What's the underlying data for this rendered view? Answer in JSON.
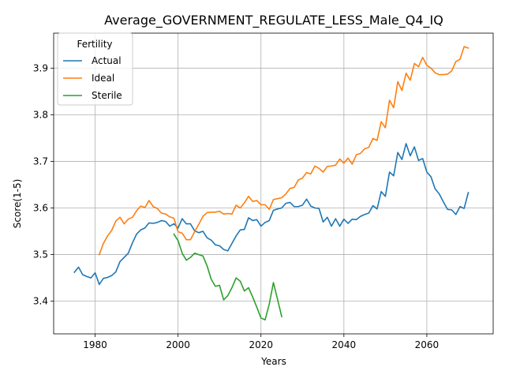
{
  "chart_data": {
    "type": "line",
    "title": "Average_GOVERNMENT_REGULATE_LESS_Male_Q4_IQ",
    "xlabel": "Years",
    "ylabel": "Score(1-5)",
    "xlim": [
      1970,
      2076
    ],
    "ylim": [
      3.33,
      3.975
    ],
    "x_ticks": [
      1980,
      2000,
      2020,
      2040,
      2060
    ],
    "y_ticks": [
      3.4,
      3.5,
      3.6,
      3.7,
      3.8,
      3.9
    ],
    "grid": true,
    "legend": {
      "title": "Fertility",
      "placement": "top-left"
    },
    "series": [
      {
        "name": "Actual",
        "color": "#1f77b4",
        "x": [
          1975,
          1976,
          1977,
          1978,
          1979,
          1980,
          1981,
          1982,
          1983,
          1984,
          1985,
          1986,
          1987,
          1988,
          1989,
          1990,
          1991,
          1992,
          1993,
          1994,
          1995,
          1996,
          1997,
          1998,
          1999,
          2000,
          2001,
          2002,
          2003,
          2004,
          2005,
          2006,
          2007,
          2008,
          2009,
          2010,
          2011,
          2012,
          2013,
          2014,
          2015,
          2016,
          2017,
          2018,
          2019,
          2020,
          2021,
          2022,
          2023,
          2024,
          2025,
          2026,
          2027,
          2028,
          2029,
          2030,
          2031,
          2032,
          2033,
          2034,
          2035,
          2036,
          2037,
          2038,
          2039,
          2040,
          2041,
          2042,
          2043,
          2044,
          2045,
          2046,
          2047,
          2048,
          2049,
          2050,
          2051,
          2052,
          2053,
          2054,
          2055,
          2056,
          2057,
          2058,
          2059,
          2060,
          2061,
          2062,
          2063,
          2064,
          2065,
          2066,
          2067,
          2068,
          2069,
          2070
        ],
        "values": [
          3.462,
          3.473,
          3.457,
          3.453,
          3.45,
          3.461,
          3.436,
          3.449,
          3.451,
          3.455,
          3.463,
          3.485,
          3.494,
          3.503,
          3.525,
          3.544,
          3.553,
          3.557,
          3.568,
          3.567,
          3.569,
          3.573,
          3.571,
          3.561,
          3.566,
          3.557,
          3.577,
          3.566,
          3.566,
          3.551,
          3.547,
          3.55,
          3.536,
          3.531,
          3.521,
          3.519,
          3.511,
          3.508,
          3.524,
          3.54,
          3.553,
          3.554,
          3.579,
          3.573,
          3.575,
          3.561,
          3.569,
          3.573,
          3.595,
          3.598,
          3.6,
          3.61,
          3.612,
          3.603,
          3.603,
          3.606,
          3.619,
          3.604,
          3.6,
          3.599,
          3.57,
          3.58,
          3.561,
          3.577,
          3.561,
          3.576,
          3.567,
          3.576,
          3.575,
          3.582,
          3.586,
          3.589,
          3.605,
          3.598,
          3.635,
          3.625,
          3.677,
          3.669,
          3.719,
          3.704,
          3.738,
          3.712,
          3.731,
          3.702,
          3.706,
          3.677,
          3.667,
          3.641,
          3.63,
          3.613,
          3.597,
          3.596,
          3.586,
          3.603,
          3.599,
          3.633
        ]
      },
      {
        "name": "Ideal",
        "color": "#ff7f0e",
        "x": [
          1981,
          1982,
          1983,
          1984,
          1985,
          1986,
          1987,
          1988,
          1989,
          1990,
          1991,
          1992,
          1993,
          1994,
          1995,
          1996,
          1997,
          1998,
          1999,
          2000,
          2001,
          2002,
          2003,
          2004,
          2005,
          2006,
          2007,
          2008,
          2009,
          2010,
          2011,
          2012,
          2013,
          2014,
          2015,
          2016,
          2017,
          2018,
          2019,
          2020,
          2021,
          2022,
          2023,
          2024,
          2025,
          2026,
          2027,
          2028,
          2029,
          2030,
          2031,
          2032,
          2033,
          2034,
          2035,
          2036,
          2037,
          2038,
          2039,
          2040,
          2041,
          2042,
          2043,
          2044,
          2045,
          2046,
          2047,
          2048,
          2049,
          2050,
          2051,
          2052,
          2053,
          2054,
          2055,
          2056,
          2057,
          2058,
          2059,
          2060,
          2061,
          2062,
          2063,
          2064,
          2065,
          2066,
          2067,
          2068,
          2069,
          2070
        ],
        "values": [
          3.5,
          3.524,
          3.54,
          3.552,
          3.572,
          3.58,
          3.566,
          3.576,
          3.58,
          3.594,
          3.604,
          3.601,
          3.616,
          3.603,
          3.599,
          3.589,
          3.587,
          3.581,
          3.578,
          3.549,
          3.546,
          3.532,
          3.532,
          3.549,
          3.565,
          3.582,
          3.59,
          3.591,
          3.591,
          3.593,
          3.587,
          3.588,
          3.587,
          3.606,
          3.6,
          3.611,
          3.625,
          3.614,
          3.616,
          3.607,
          3.607,
          3.597,
          3.618,
          3.62,
          3.622,
          3.63,
          3.642,
          3.644,
          3.66,
          3.664,
          3.676,
          3.673,
          3.69,
          3.685,
          3.677,
          3.689,
          3.69,
          3.692,
          3.705,
          3.696,
          3.707,
          3.694,
          3.714,
          3.717,
          3.727,
          3.73,
          3.749,
          3.745,
          3.785,
          3.772,
          3.831,
          3.815,
          3.871,
          3.852,
          3.889,
          3.874,
          3.91,
          3.903,
          3.923,
          3.906,
          3.9,
          3.89,
          3.886,
          3.886,
          3.887,
          3.894,
          3.914,
          3.919,
          3.946,
          3.943
        ]
      },
      {
        "name": "Sterile",
        "color": "#2ca02c",
        "x": [
          1999,
          2000,
          2001,
          2002,
          2003,
          2004,
          2005,
          2006,
          2007,
          2008,
          2009,
          2010,
          2011,
          2012,
          2013,
          2014,
          2015,
          2016,
          2017,
          2018,
          2019,
          2020,
          2021,
          2022,
          2023,
          2024,
          2025
        ],
        "values": [
          3.544,
          3.53,
          3.503,
          3.488,
          3.494,
          3.503,
          3.5,
          3.497,
          3.476,
          3.447,
          3.432,
          3.434,
          3.403,
          3.412,
          3.429,
          3.45,
          3.443,
          3.422,
          3.429,
          3.409,
          3.387,
          3.364,
          3.36,
          3.394,
          3.44,
          3.404,
          3.367
        ]
      }
    ]
  }
}
